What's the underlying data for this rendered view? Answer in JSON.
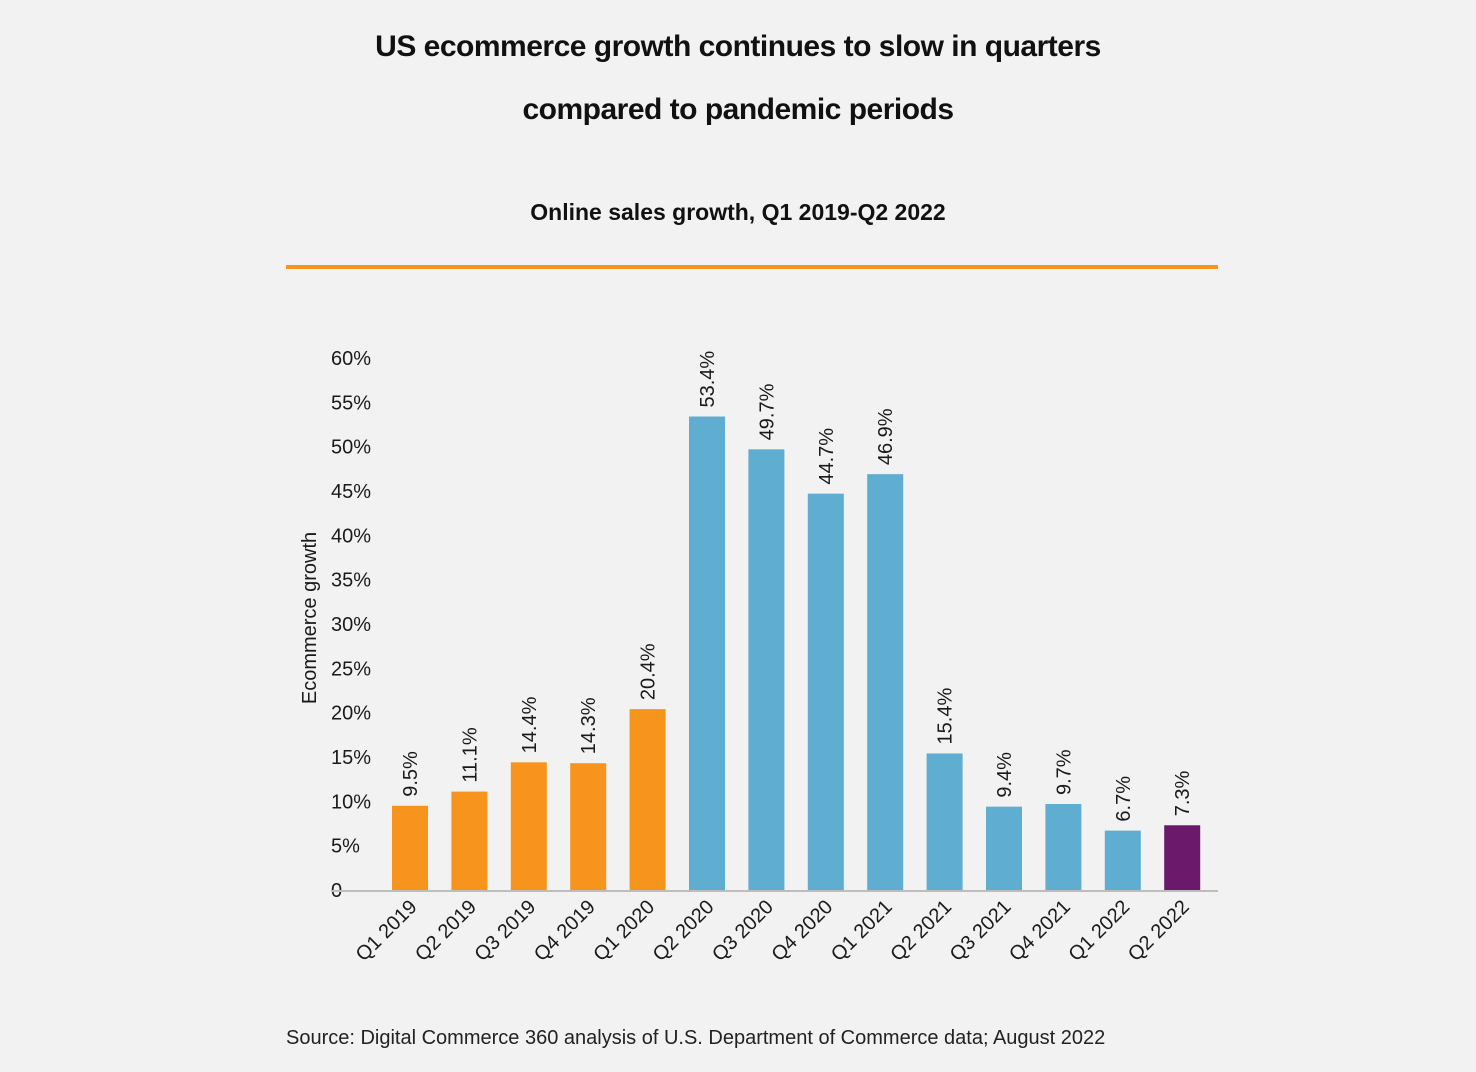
{
  "header": {
    "title_line1": "US ecommerce growth continues to slow in quarters",
    "title_line2": "compared to pandemic periods",
    "subtitle": "Online sales growth, Q1 2019-Q2 2022"
  },
  "footer": {
    "source": "Source: Digital Commerce 360 analysis of U.S. Department of Commerce data; August 2022"
  },
  "colors": {
    "pre_pandemic": "#f7941d",
    "pandemic": "#5fadd0",
    "latest": "#6b1a6b",
    "accent_rule": "#f7941d"
  },
  "chart_data": {
    "type": "bar",
    "ylabel": "Ecommerce growth",
    "ylim": [
      0,
      60
    ],
    "yticks": [
      "0",
      "5%",
      "10%",
      "15%",
      "20%",
      "25%",
      "30%",
      "35%",
      "40%",
      "45%",
      "50%",
      "55%",
      "60%"
    ],
    "categories": [
      "Q1 2019",
      "Q2 2019",
      "Q3 2019",
      "Q4 2019",
      "Q1 2020",
      "Q2 2020",
      "Q3 2020",
      "Q4 2020",
      "Q1 2021",
      "Q2 2021",
      "Q3 2021",
      "Q4 2021",
      "Q1 2022",
      "Q2 2022"
    ],
    "values": [
      9.5,
      11.1,
      14.4,
      14.3,
      20.4,
      53.4,
      49.7,
      44.7,
      46.9,
      15.4,
      9.4,
      9.7,
      6.7,
      7.3
    ],
    "labels": [
      "9.5%",
      "11.1%",
      "14.4%",
      "14.3%",
      "20.4%",
      "53.4%",
      "49.7%",
      "44.7%",
      "46.9%",
      "15.4%",
      "9.4%",
      "9.7%",
      "6.7%",
      "7.3%"
    ],
    "bar_colors": [
      "#f7941d",
      "#f7941d",
      "#f7941d",
      "#f7941d",
      "#f7941d",
      "#5fadd0",
      "#5fadd0",
      "#5fadd0",
      "#5fadd0",
      "#5fadd0",
      "#5fadd0",
      "#5fadd0",
      "#5fadd0",
      "#6b1a6b"
    ],
    "grid": false,
    "legend": "none"
  }
}
